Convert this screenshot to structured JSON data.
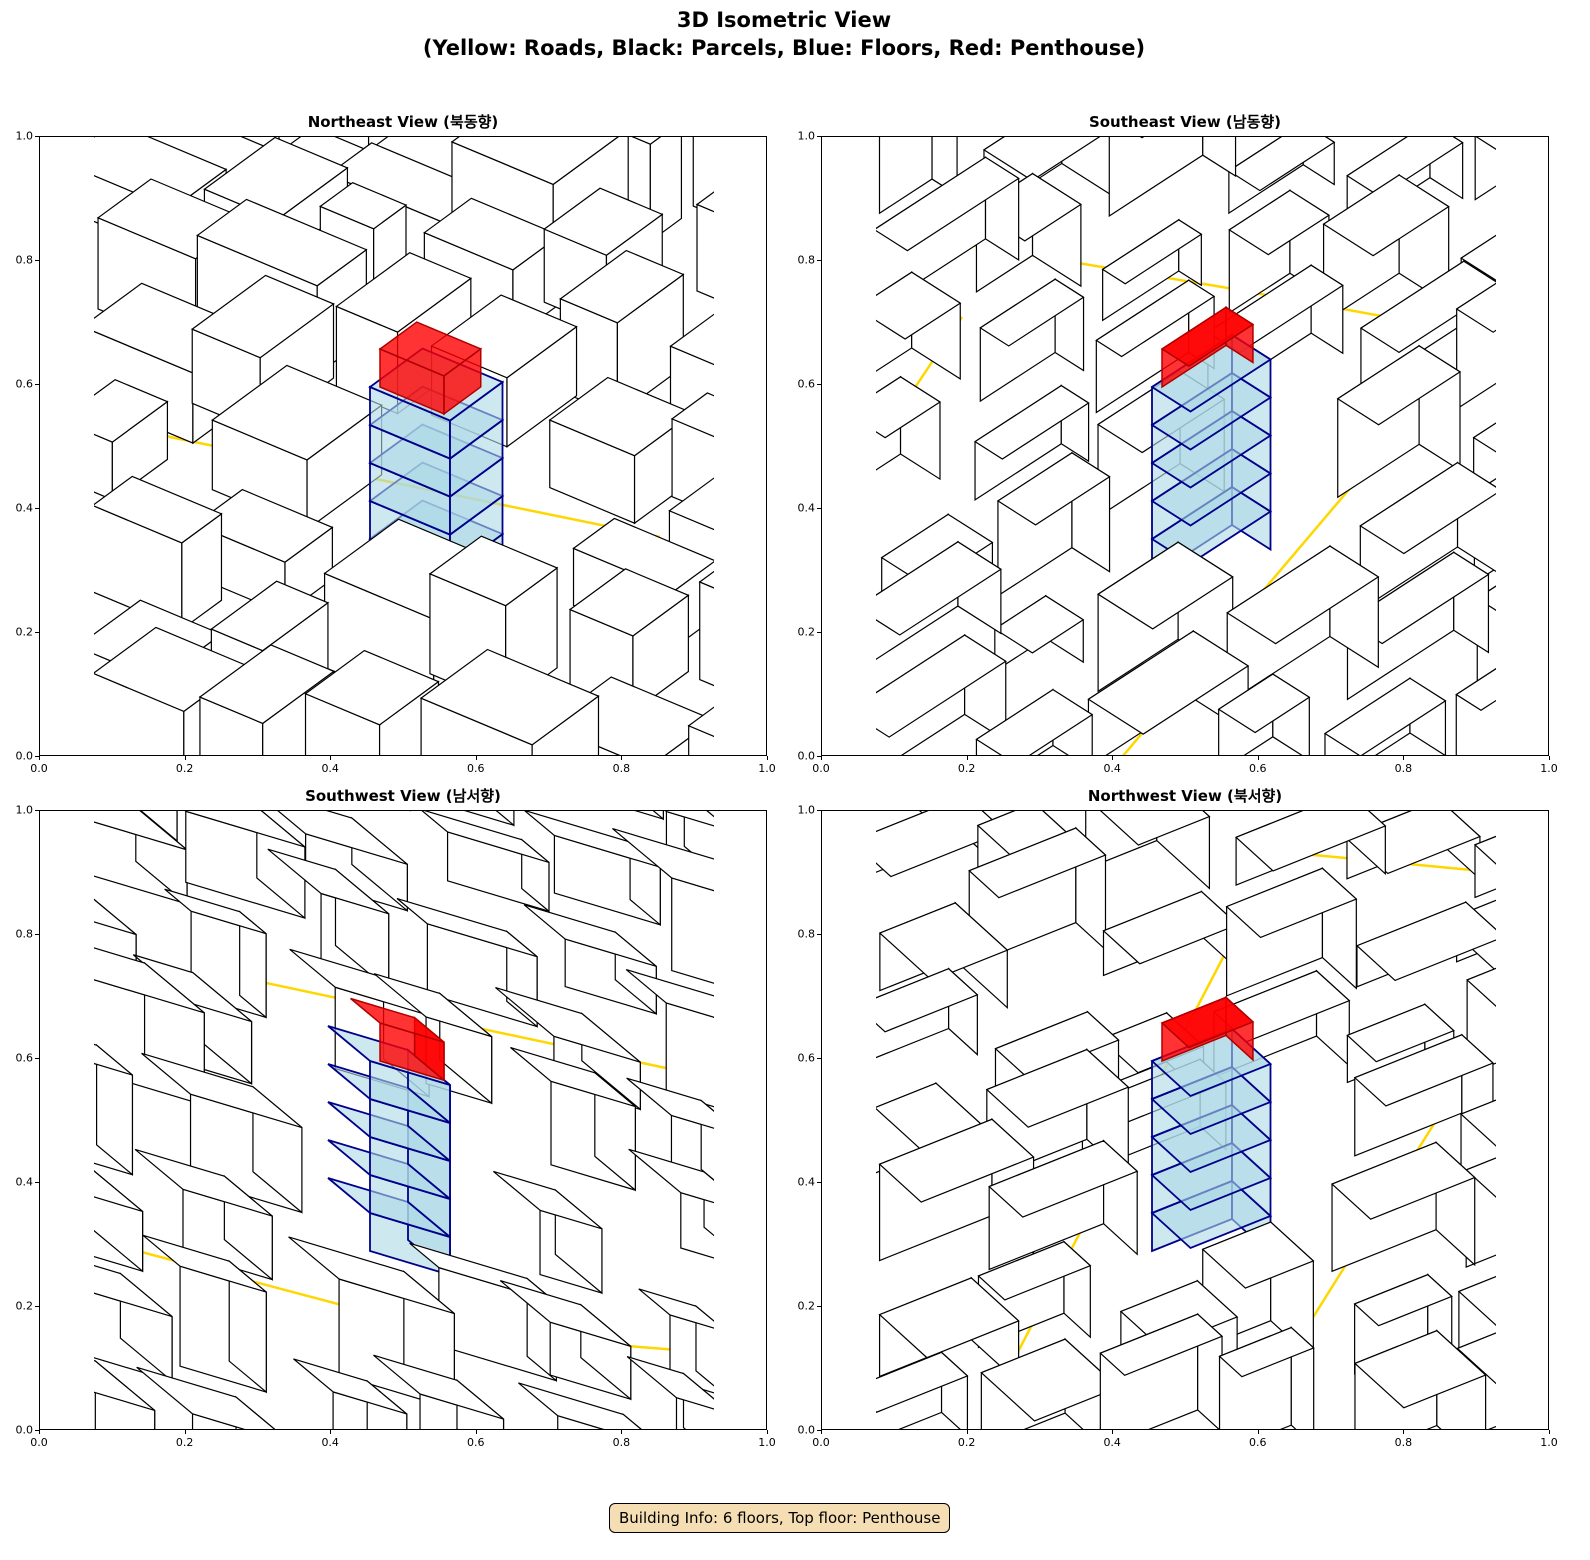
{
  "title_line1": "3D Isometric View",
  "title_line2": "(Yellow: Roads, Black: Parcels, Blue: Floors, Red: Penthouse)",
  "panels": [
    {
      "title": "Northeast View (북동향)"
    },
    {
      "title": "Southeast View (남동향)"
    },
    {
      "title": "Southwest View (남서향)"
    },
    {
      "title": "Northwest View (북서향)"
    }
  ],
  "ticks": [
    "0.0",
    "0.2",
    "0.4",
    "0.6",
    "0.8",
    "1.0"
  ],
  "axis_range": {
    "x": [
      0,
      1
    ],
    "y": [
      0,
      1
    ]
  },
  "colors": {
    "roads": "#ffd700",
    "parcels": "#000000",
    "floors_fill": "#add8e6",
    "floors_edge": "#00008b",
    "penthouse": "#ff0000"
  },
  "footer": "Building Info: 6 floors, Top floor: Penthouse"
}
